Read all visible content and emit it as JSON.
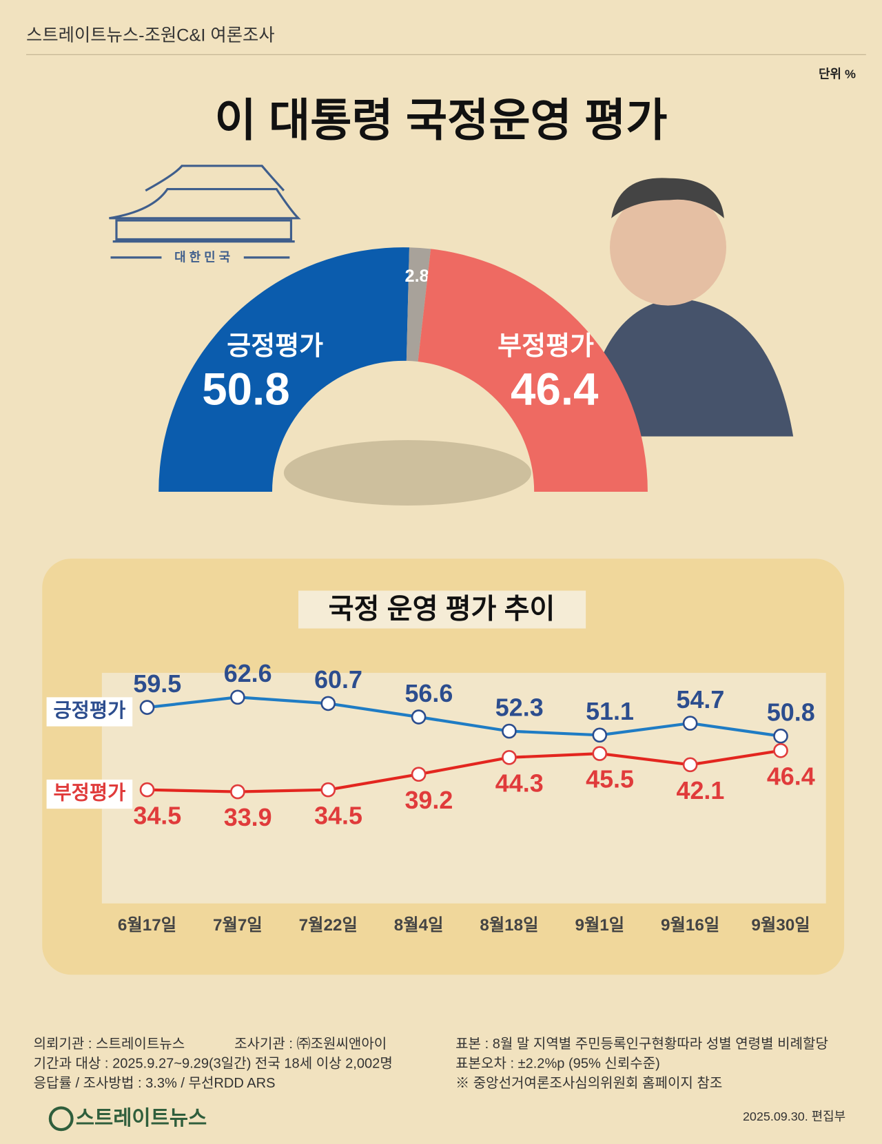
{
  "header": "스트레이트뉴스-조원C&I 여론조사",
  "unit": "단위 %",
  "emblem": "대 한 민 국",
  "chart_data": [
    {
      "type": "pie",
      "title": "이 대통령 국정운영 평가",
      "categories": [
        "긍정평가",
        null,
        "부정평가"
      ],
      "values": [
        50.8,
        2.8,
        46.4
      ],
      "colors": [
        "#0b5cad",
        "#a8a29a",
        "#ee6a62"
      ]
    },
    {
      "type": "line",
      "title": "국정 운영 평가 추이",
      "categories": [
        "6월17일",
        "7월7일",
        "7월22일",
        "8월4일",
        "8월18일",
        "9월1일",
        "9월16일",
        "9월30일"
      ],
      "ylim": [
        0,
        70
      ],
      "series": [
        {
          "name": "긍정평가",
          "color": "#1f7cc4",
          "label_color": "#2c4d8e",
          "values": [
            59.5,
            62.6,
            60.7,
            56.6,
            52.3,
            51.1,
            54.7,
            50.8
          ]
        },
        {
          "name": "부정평가",
          "color": "#e3261f",
          "label_color": "#e03b3b",
          "values": [
            34.5,
            33.9,
            34.5,
            39.2,
            44.3,
            45.5,
            42.1,
            46.4
          ]
        }
      ]
    }
  ],
  "footer": {
    "left": [
      "의뢰기관 : 스트레이트뉴스",
      "조사기관 : ㈜조원씨앤아이",
      "기간과 대상 : 2025.9.27~9.29(3일간)  전국 18세 이상  2,002명",
      "응답률 / 조사방법 : 3.3% / 무선RDD ARS"
    ],
    "right": [
      "표본 : 8월 말 지역별 주민등록인구현황따라 성별 연령별 비례할당",
      "표본오차 : ±2.2%p (95% 신뢰수준)",
      "※ 중앙선거여론조사심의위원회 홈페이지 참조"
    ],
    "logo": "스트레이트뉴스",
    "date": "2025.09.30. 편집부"
  }
}
